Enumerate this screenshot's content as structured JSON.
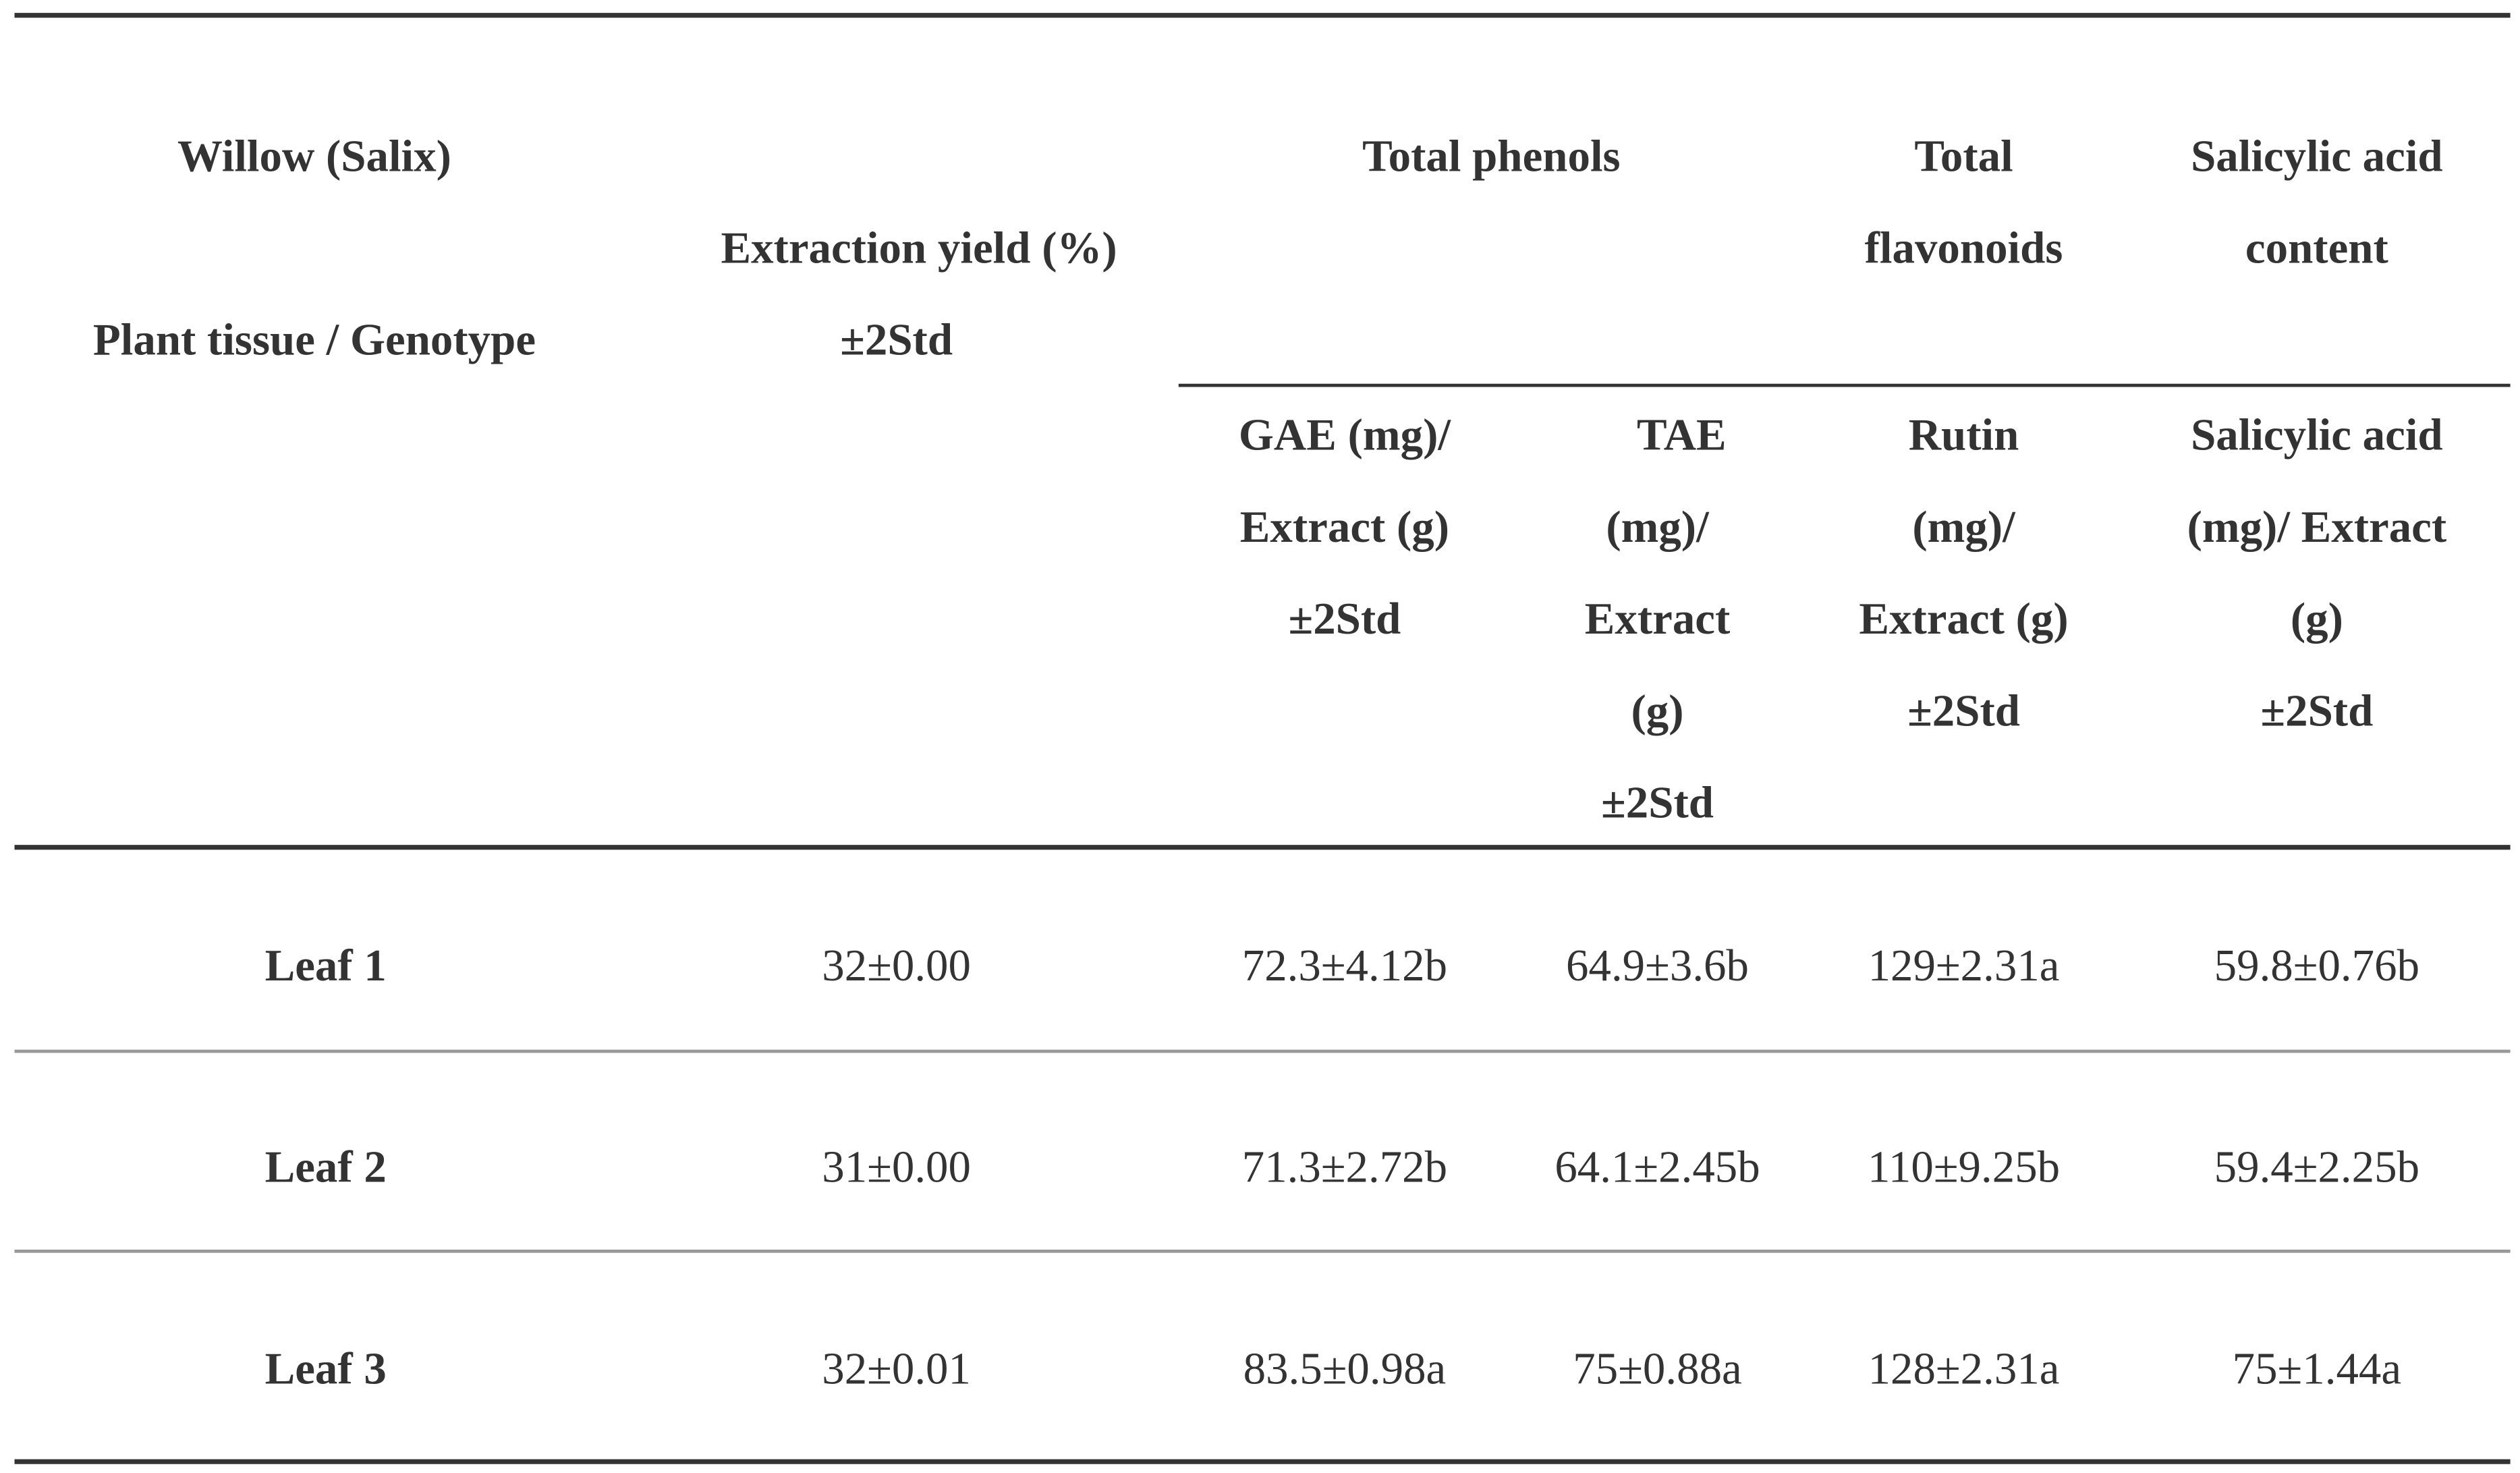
{
  "header": {
    "col1": [
      "Willow (Salix)",
      "Plant tissue / Genotype"
    ],
    "col2": [
      "Extraction yield (%)",
      "±2Std"
    ],
    "group_phenols": "Total phenols",
    "group_flavonoids": [
      "Total",
      "flavonoids"
    ],
    "group_salicylic": [
      "Salicylic acid",
      "content"
    ],
    "sub_gae": [
      "GAE (mg)/",
      "Extract (g)",
      "±2Std"
    ],
    "sub_tae": [
      "TAE",
      "(mg)/",
      "Extract",
      "(g)",
      "±2Std"
    ],
    "sub_rutin": [
      "Rutin",
      "(mg)/",
      "Extract (g)",
      "±2Std"
    ],
    "sub_salicylic": [
      "Salicylic acid",
      "(mg)/ Extract",
      "(g)",
      "±2Std"
    ]
  },
  "rows": [
    [
      "Leaf 1",
      "32±0.00",
      "72.3±4.12b",
      "64.9±3.6b",
      "129±2.31a",
      "59.8±0.76b"
    ],
    [
      "Leaf 2",
      "31±0.00",
      "71.3±2.72b",
      "64.1±2.45b",
      "110±9.25b",
      "59.4±2.25b"
    ],
    [
      "Leaf 3",
      "32±0.01",
      "83.5±0.98a",
      "75±0.88a",
      "128±2.31a",
      "75±1.44a"
    ]
  ]
}
